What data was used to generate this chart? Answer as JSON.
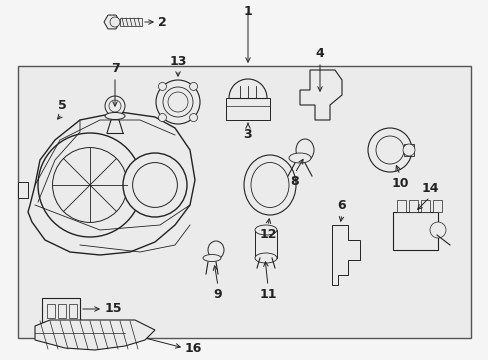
{
  "bg_color": "#f5f5f5",
  "box_bg": "#ebebeb",
  "lc": "#222222",
  "fig_width": 4.89,
  "fig_height": 3.6,
  "dpi": 100,
  "font_size": 9
}
